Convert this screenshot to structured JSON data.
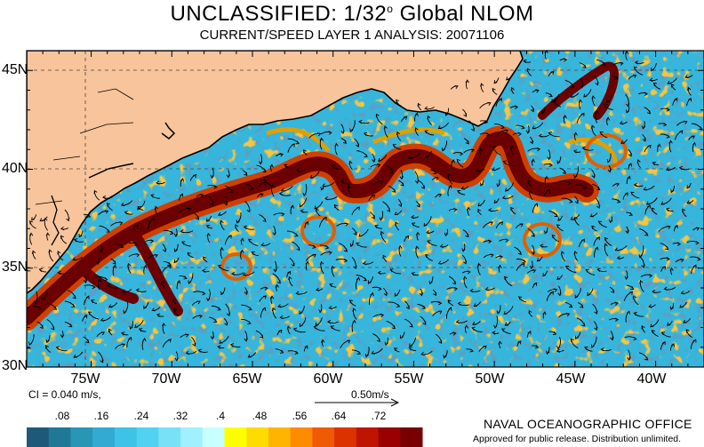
{
  "title": {
    "main": "UNCLASSIFIED: 1/32",
    "degree_mark": "o",
    "suffix": " Global NLOM"
  },
  "subtitle": "CURRENT/SPEED LAYER 1 ANALYSIS: 20071106",
  "map": {
    "lon_range": [
      -79,
      -37
    ],
    "lat_range": [
      30,
      46
    ],
    "lat_ticks": [
      {
        "value": 45,
        "label": "45N"
      },
      {
        "value": 40,
        "label": "40N"
      },
      {
        "value": 35,
        "label": "35N"
      },
      {
        "value": 30,
        "label": "30N"
      }
    ],
    "lon_ticks": [
      {
        "value": -75,
        "label": "75W"
      },
      {
        "value": -70,
        "label": "70W"
      },
      {
        "value": -65,
        "label": "65W"
      },
      {
        "value": -60,
        "label": "60W"
      },
      {
        "value": -55,
        "label": "55W"
      },
      {
        "value": -50,
        "label": "50W"
      },
      {
        "value": -45,
        "label": "45W"
      },
      {
        "value": -40,
        "label": "40W"
      }
    ],
    "colors": {
      "ocean": "#36b6dc",
      "land": "#f8c49c",
      "jet_core": "#6b0000",
      "jet_edge": "#c83200",
      "warm": "#f0a000"
    }
  },
  "contour_interval": "CI = 0.040 m/s,",
  "reference_vector": "0.50m/s",
  "colorbar": {
    "ticks": [
      ".08",
      ".16",
      ".24",
      ".32",
      ".4",
      ".48",
      ".56",
      ".64",
      ".72"
    ],
    "colors": [
      "#1e5a78",
      "#1e7896",
      "#2896b4",
      "#32aad2",
      "#3cc3e6",
      "#50d2f0",
      "#78e1f8",
      "#a0f0ff",
      "#c8ffff",
      "#ffff00",
      "#ffdc00",
      "#ffb400",
      "#ff8c00",
      "#f05a00",
      "#dc3200",
      "#be1400",
      "#9b0000",
      "#780000"
    ]
  },
  "agency": "NAVAL OCEANOGRAPHIC OFFICE",
  "release_note": "Approved for public release. Distribution unlimited."
}
